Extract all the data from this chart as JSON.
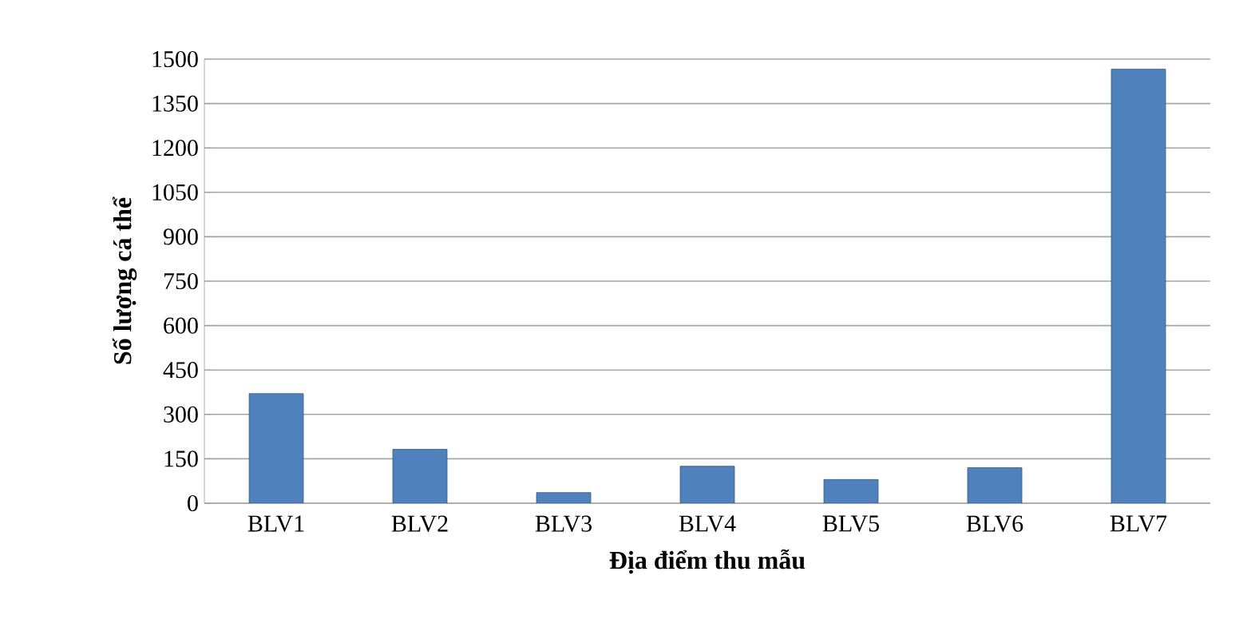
{
  "chart_data": {
    "type": "bar",
    "xlabel": "Địa điểm thu mẫu",
    "ylabel": "Số lượng cá thể",
    "categories": [
      "BLV1",
      "BLV2",
      "BLV3",
      "BLV4",
      "BLV5",
      "BLV6",
      "BLV7"
    ],
    "values": [
      370,
      182,
      36,
      125,
      80,
      120,
      1466
    ],
    "color": "#4f81bd",
    "ylim": [
      0,
      1500
    ],
    "yticks": [
      0,
      150,
      300,
      450,
      600,
      750,
      900,
      1050,
      1200,
      1350,
      1500
    ],
    "grid": "y"
  }
}
